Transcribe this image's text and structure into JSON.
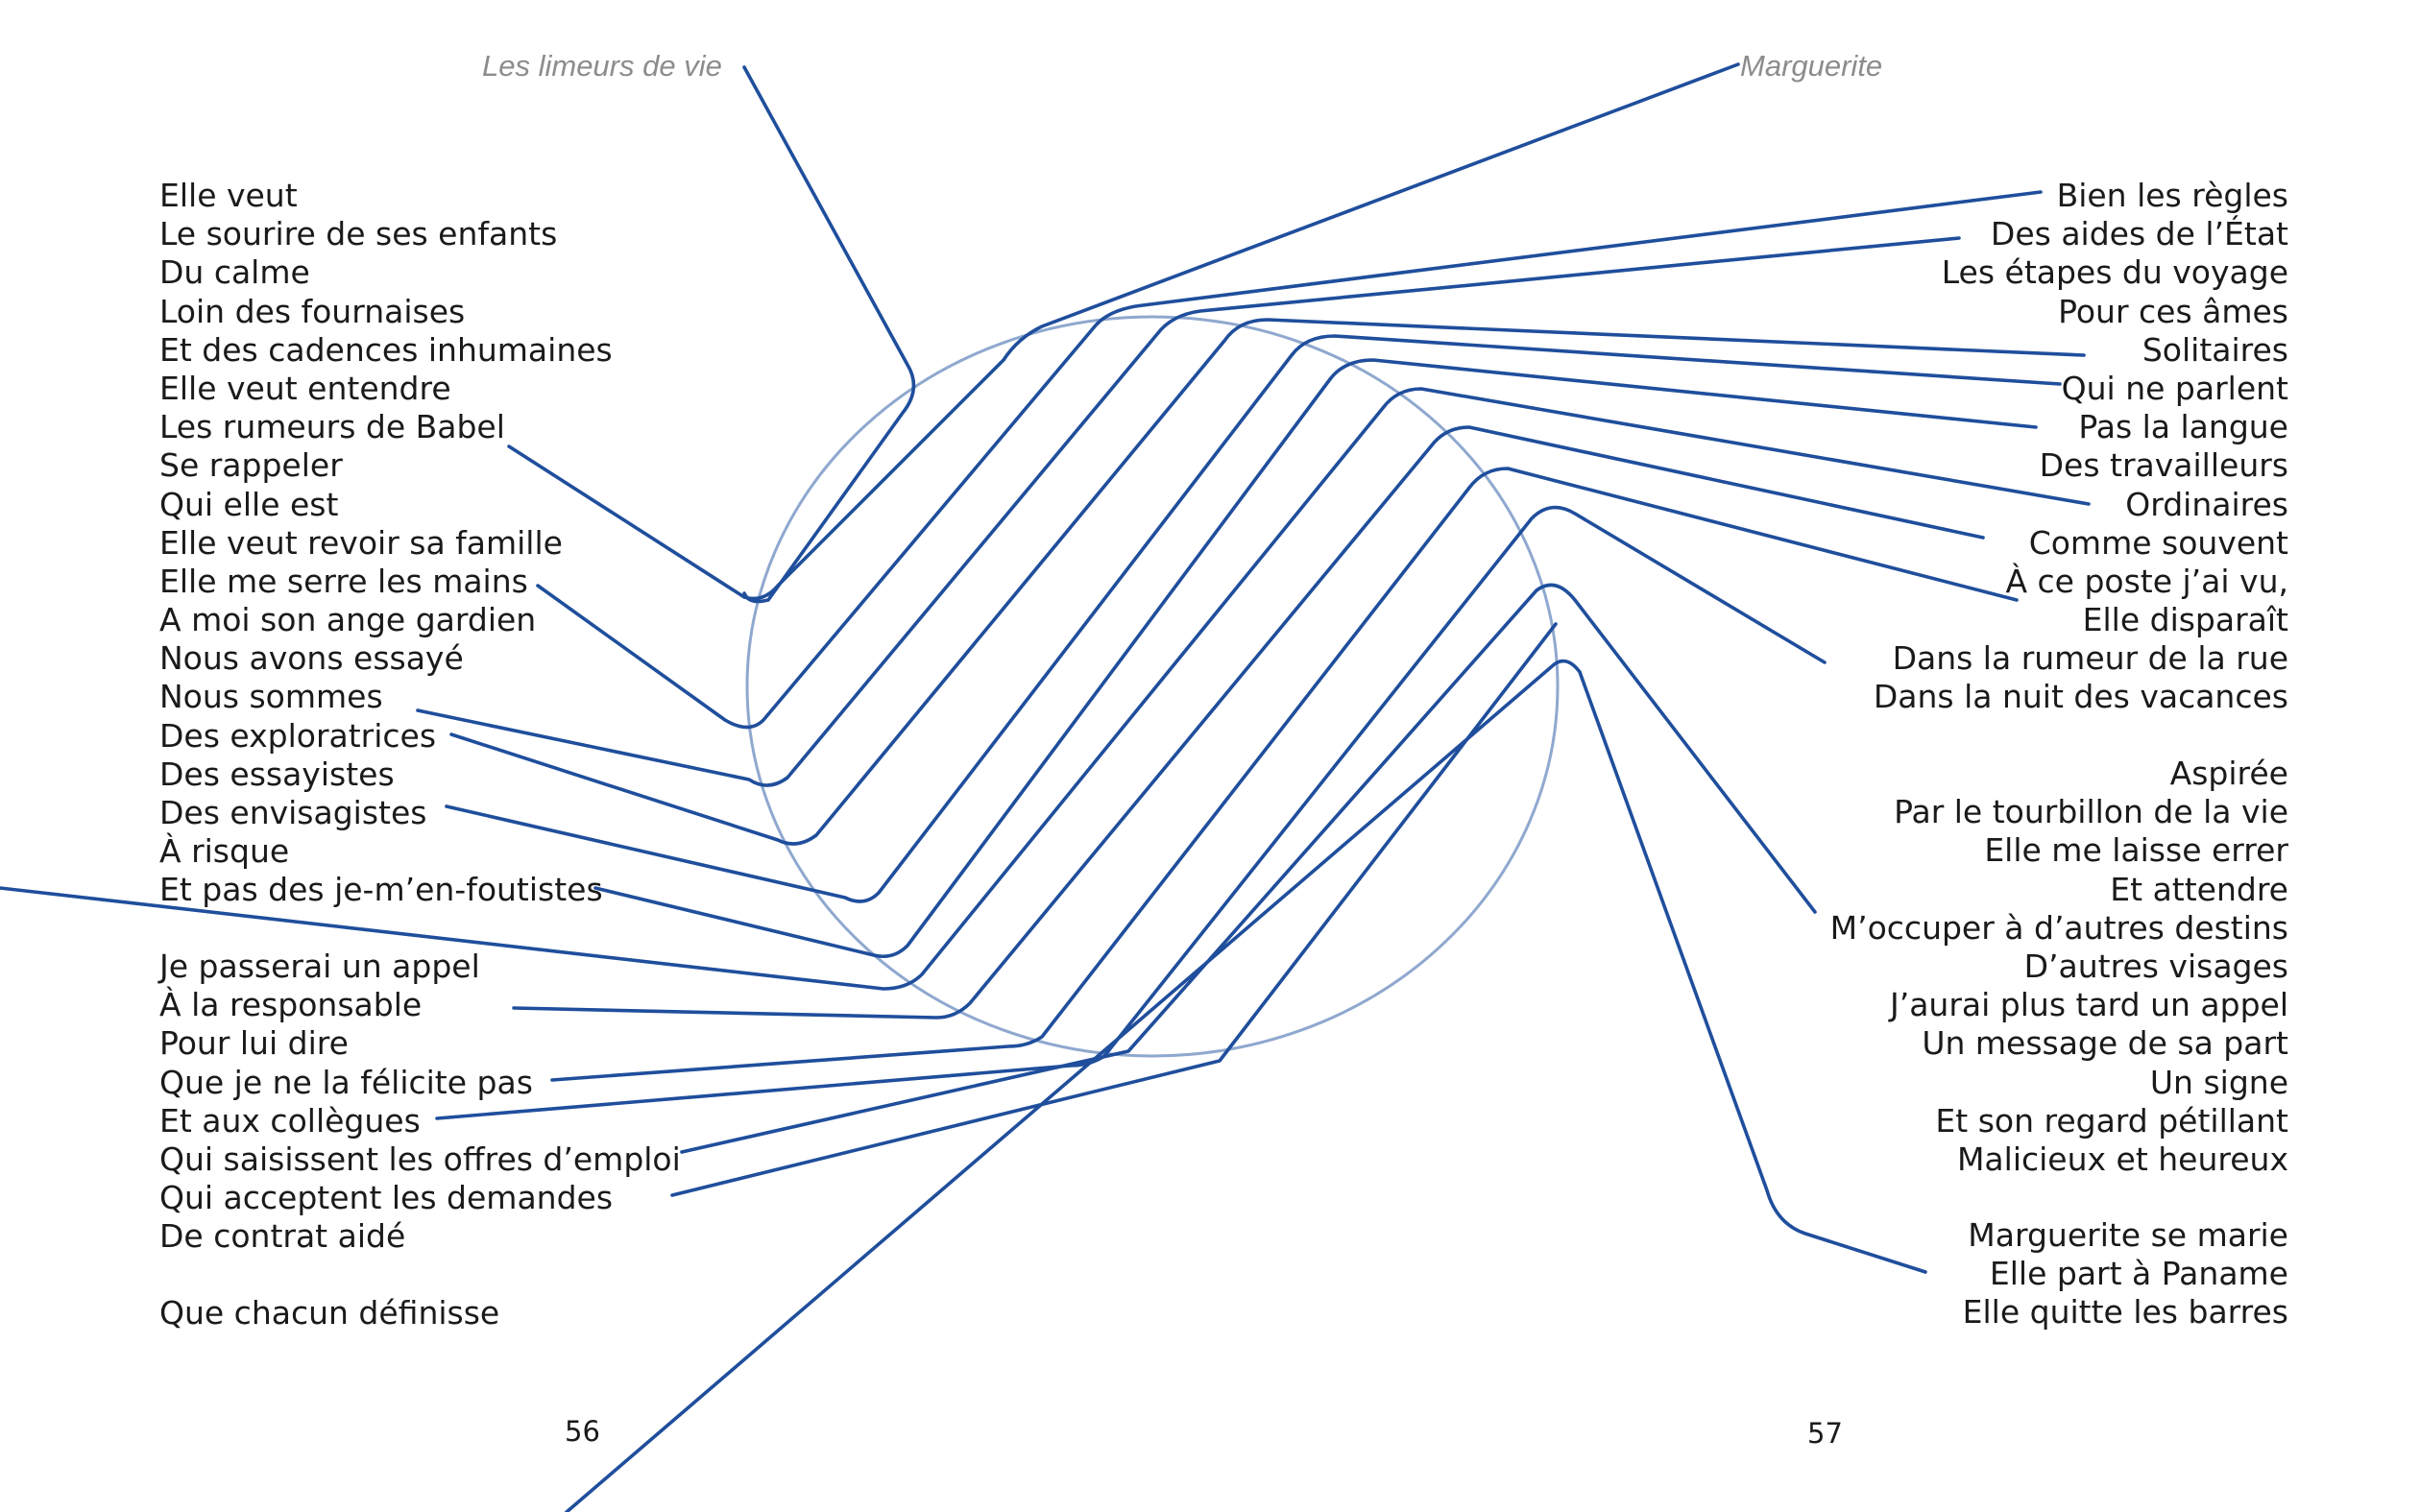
{
  "titles": {
    "left": "Les limeurs de vie",
    "right": "Marguerite"
  },
  "left_column": {
    "block1": [
      "Elle veut",
      "Le sourire de ses enfants",
      "Du calme",
      "Loin des fournaises",
      "Et des cadences inhumaines",
      "Elle veut entendre",
      "Les rumeurs de Babel",
      "Se rappeler",
      "Qui elle est",
      "Elle veut revoir sa famille",
      "Elle me serre les mains",
      "A moi son ange gardien",
      "Nous avons essayé",
      "Nous sommes",
      "Des exploratrices",
      "Des essayistes",
      "Des envisagistes",
      "À risque",
      "Et pas des je-m’en-foutistes"
    ],
    "block2": [
      "Je passerai un appel",
      "À la responsable",
      "Pour lui dire",
      "Que je ne la félicite pas",
      "Et aux collègues",
      "Qui saisissent les offres d’emploi",
      "Qui acceptent les demandes",
      "De contrat aidé"
    ],
    "block3": [
      "Que chacun définisse"
    ]
  },
  "right_column": {
    "block1": [
      "Bien les règles",
      "Des aides de l’État",
      "Les étapes du voyage",
      "Pour ces âmes",
      "Solitaires",
      "Qui ne parlent",
      "Pas la langue",
      "Des travailleurs",
      "Ordinaires",
      "Comme souvent",
      "À ce poste j’ai vu,",
      "Elle disparaît",
      "Dans la rumeur de la rue",
      "Dans la nuit des vacances"
    ],
    "block2": [
      "Aspirée",
      "Par le tourbillon de la vie",
      "Elle me laisse errer",
      "Et attendre",
      "M’occuper à d’autres destins",
      "D’autres visages",
      "J’aurai plus tard un appel",
      "Un message de sa part",
      "Un signe",
      "Et son regard pétillant",
      "Malicieux et heureux"
    ],
    "block3": [
      "Marguerite se marie",
      "Elle part à Paname",
      "Elle quitte les barres"
    ]
  },
  "page_numbers": {
    "left": "56",
    "right": "57"
  },
  "colors": {
    "line": "#1f4e9c",
    "ellipse": "#8fa8cf",
    "text": "#1a1a1a",
    "title": "#8c8c8c"
  }
}
